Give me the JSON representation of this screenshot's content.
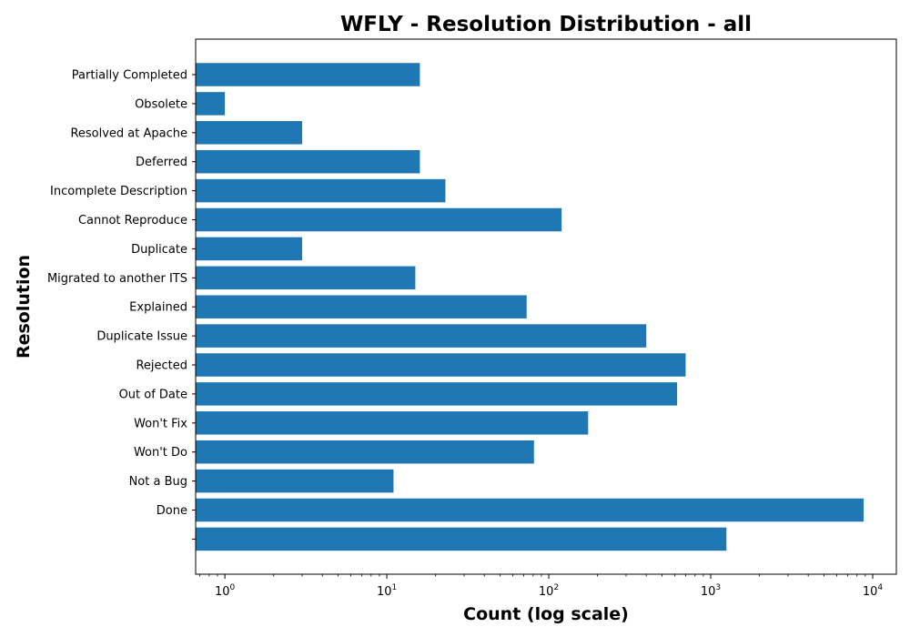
{
  "chart_data": {
    "type": "bar",
    "orientation": "horizontal",
    "title": "WFLY - Resolution Distribution - all",
    "xlabel": "Count (log scale)",
    "ylabel": "Resolution",
    "xscale": "log",
    "xlim": [
      0.66,
      14000
    ],
    "x_ticks": [
      {
        "base": "10",
        "exp": "0",
        "value": 1
      },
      {
        "base": "10",
        "exp": "1",
        "value": 10
      },
      {
        "base": "10",
        "exp": "2",
        "value": 100
      },
      {
        "base": "10",
        "exp": "3",
        "value": 1000
      },
      {
        "base": "10",
        "exp": "4",
        "value": 10000
      }
    ],
    "categories": [
      "Partially Completed",
      "Obsolete",
      "Resolved at Apache",
      "Deferred",
      "Incomplete Description",
      "Cannot Reproduce",
      "Duplicate",
      "Migrated to another ITS",
      "Explained",
      "Duplicate Issue",
      "Rejected",
      "Out of Date",
      "Won't Fix",
      "Won't Do",
      "Not a Bug",
      "Done",
      ""
    ],
    "values": [
      16,
      1,
      3,
      16,
      23,
      120,
      3,
      15,
      73,
      400,
      700,
      620,
      175,
      81,
      11,
      8800,
      1250
    ],
    "bar_color": "#1f77b4",
    "grid": false,
    "legend": "none"
  }
}
